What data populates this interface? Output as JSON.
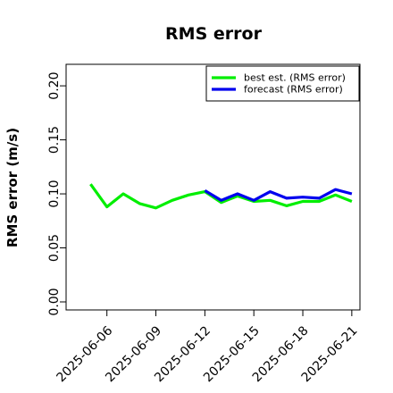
{
  "chart_data": {
    "type": "line",
    "title": "RMS error",
    "xlabel": "",
    "ylabel": "RMS error (m/s)",
    "ylim": [
      0.0,
      0.21
    ],
    "yticks": [
      0.0,
      0.05,
      0.1,
      0.15,
      0.2
    ],
    "ytick_labels": [
      "0.00",
      "0.05",
      "0.10",
      "0.15",
      "0.20"
    ],
    "xlim": [
      "2025-06-03T12:00",
      "2025-06-21T12:00"
    ],
    "xticks": [
      "2025-06-06",
      "2025-06-09",
      "2025-06-12",
      "2025-06-15",
      "2025-06-18",
      "2025-06-21"
    ],
    "xtick_labels": [
      "2025-06-06",
      "2025-06-09",
      "2025-06-12",
      "2025-06-15",
      "2025-06-18",
      "2025-06-21"
    ],
    "xtick_colors": [
      "#000000",
      "#000000",
      "#228B22",
      "#000000",
      "#000000",
      "#000000"
    ],
    "grid": false,
    "legend_position": "top-right",
    "series": [
      {
        "name": "best est. (RMS error)",
        "color": "#00ee00",
        "x": [
          "2025-06-05",
          "2025-06-06",
          "2025-06-07",
          "2025-06-08",
          "2025-06-09",
          "2025-06-10",
          "2025-06-11",
          "2025-06-12",
          "2025-06-13",
          "2025-06-14",
          "2025-06-15",
          "2025-06-16",
          "2025-06-17",
          "2025-06-18",
          "2025-06-19",
          "2025-06-20",
          "2025-06-21"
        ],
        "values": [
          0.109,
          0.088,
          0.1,
          0.091,
          0.087,
          0.094,
          0.099,
          0.102,
          0.092,
          0.098,
          0.093,
          0.094,
          0.089,
          0.093,
          0.093,
          0.099,
          0.093
        ]
      },
      {
        "name": "forecast (RMS error)",
        "color": "#0000ee",
        "x": [
          "2025-06-12",
          "2025-06-13",
          "2025-06-14",
          "2025-06-15",
          "2025-06-16",
          "2025-06-17",
          "2025-06-18",
          "2025-06-19",
          "2025-06-20",
          "2025-06-21"
        ],
        "values": [
          0.103,
          0.094,
          0.1,
          0.094,
          0.102,
          0.096,
          0.097,
          0.096,
          0.104,
          0.1
        ]
      }
    ]
  }
}
